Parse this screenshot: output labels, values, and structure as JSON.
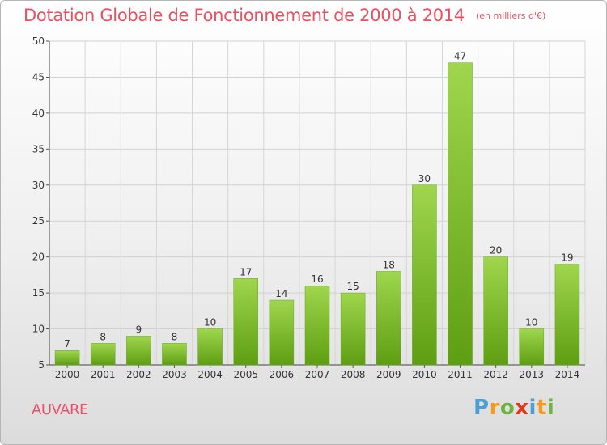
{
  "chart_data": {
    "type": "bar",
    "title": "Dotation Globale de Fonctionnement de 2000 à 2014",
    "unit": "(en milliers d'€)",
    "categories": [
      "2000",
      "2001",
      "2002",
      "2003",
      "2004",
      "2005",
      "2006",
      "2007",
      "2008",
      "2009",
      "2010",
      "2011",
      "2012",
      "2013",
      "2014"
    ],
    "values": [
      7,
      8,
      9,
      8,
      10,
      17,
      14,
      16,
      15,
      18,
      30,
      47,
      20,
      10,
      19
    ],
    "ylim": [
      5,
      50
    ],
    "yticks": [
      5,
      10,
      15,
      20,
      25,
      30,
      35,
      40,
      45,
      50
    ],
    "xlabel": "",
    "ylabel": "",
    "grid": true,
    "bar_color": "#7fc12f",
    "bar_color_top": "#9fd64e",
    "bar_color_bottom": "#5e9e12"
  },
  "commune": "AUVARE",
  "brand": {
    "letters": [
      "P",
      "r",
      "o",
      "x",
      "i",
      "t",
      "i"
    ],
    "colors": [
      "#4aa0d6",
      "#f39b1f",
      "#6cb43f",
      "#e2371e",
      "#4aa0d6",
      "#f39b1f",
      "#6cb43f"
    ]
  }
}
